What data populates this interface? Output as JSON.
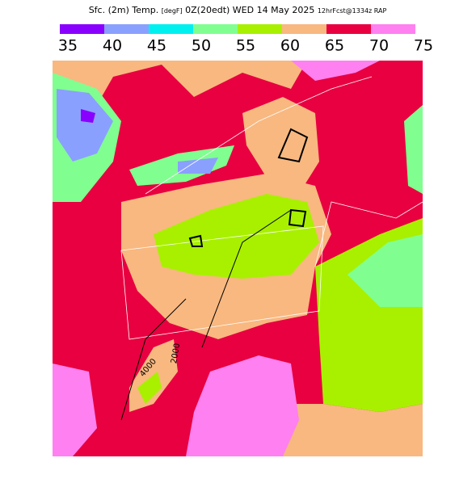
{
  "header": {
    "title": "Sfc. (2m) Temp.",
    "units": "[degF]",
    "valid": "0Z(20edt) WED 14 May 2025",
    "run": "12hrFcst@1334z RAP"
  },
  "legend": {
    "ticks": [
      35,
      40,
      45,
      50,
      55,
      60,
      65,
      70,
      75
    ],
    "colors": [
      "#8a00ff",
      "#8aa0ff",
      "#00f0f0",
      "#80ff90",
      "#a8f000",
      "#f8b880",
      "#e80040",
      "#ff80f0"
    ]
  },
  "map": {
    "contour_labels": [
      "4000",
      "2000"
    ]
  }
}
